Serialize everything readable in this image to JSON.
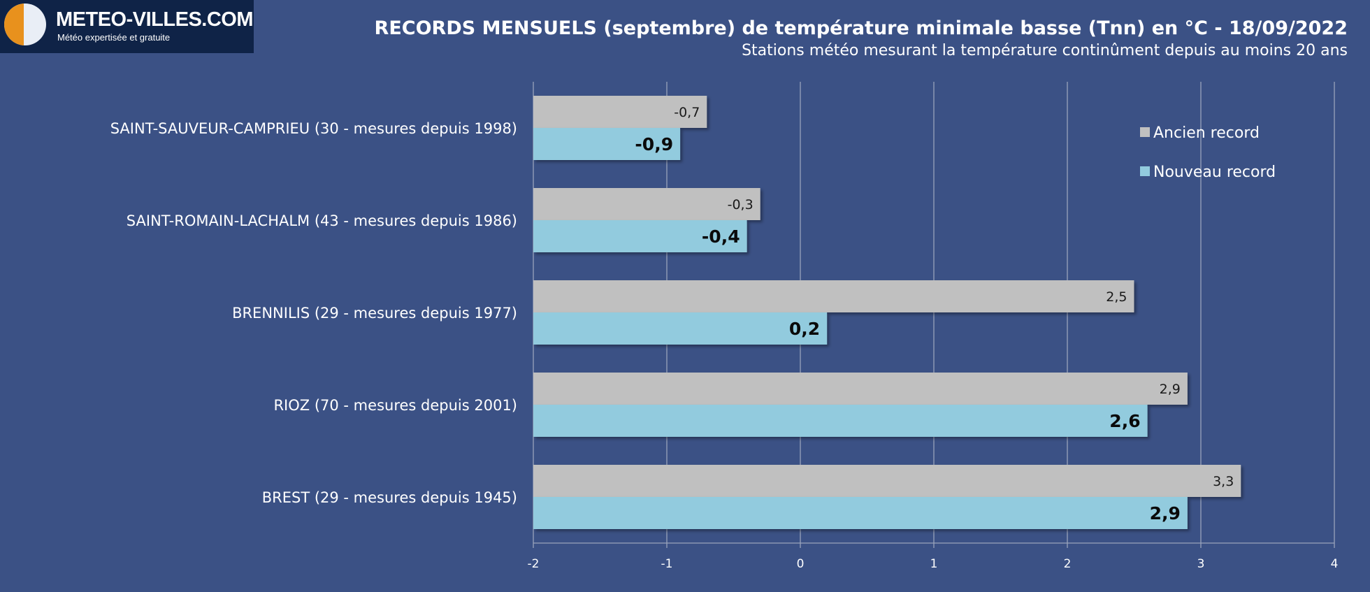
{
  "brand": {
    "name": "METEO-VILLES.COM",
    "tagline": "Météo expertisée et gratuite"
  },
  "chart_data": {
    "type": "bar",
    "orientation": "horizontal",
    "title": "RECORDS MENSUELS (septembre) de température minimale basse (Tnn) en °C - 18/09/2022",
    "subtitle": "Stations météo mesurant la température continûment depuis au moins 20 ans",
    "categories": [
      "SAINT-SAUVEUR-CAMPRIEU (30 - mesures depuis 1998)",
      "SAINT-ROMAIN-LACHALM (43 - mesures depuis 1986)",
      "BRENNILIS (29 - mesures depuis 1977)",
      "RIOZ (70 - mesures depuis 2001)",
      "BREST (29 - mesures depuis 1945)"
    ],
    "series": [
      {
        "name": "Ancien record",
        "color": "#c0c0c0",
        "values": [
          -0.7,
          -0.3,
          2.5,
          2.9,
          3.3
        ],
        "labels": [
          "-0,7",
          "-0,3",
          "2,5",
          "2,9",
          "3,3"
        ]
      },
      {
        "name": "Nouveau record",
        "color": "#92cbde",
        "values": [
          -0.9,
          -0.4,
          0.2,
          2.6,
          2.9
        ],
        "labels": [
          "-0,9",
          "-0,4",
          "0,2",
          "2,6",
          "2,9"
        ]
      }
    ],
    "xlim": [
      -2,
      4
    ],
    "xticks": [
      -2,
      -1,
      0,
      1,
      2,
      3,
      4
    ],
    "xtick_labels": [
      "-2",
      "-1",
      "0",
      "1",
      "2",
      "3",
      "4"
    ],
    "grid": "vertical",
    "legend_position": "top-right"
  }
}
